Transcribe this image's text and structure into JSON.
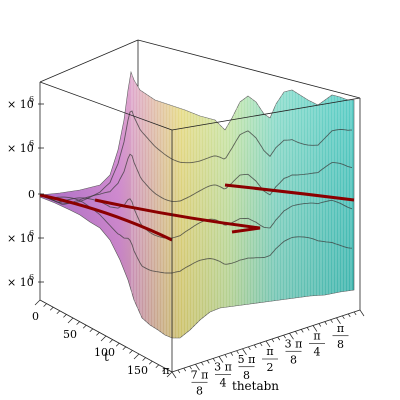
{
  "chart_data": {
    "type": "surface3d",
    "zlabel_suffix": "× 10",
    "zlabel_exp": "6",
    "z_ticks": [
      {
        "value": 2,
        "label": "× 10",
        "exp": "6"
      },
      {
        "value": 1,
        "label": "× 10",
        "exp": "6"
      },
      {
        "value": 0,
        "label": "0"
      },
      {
        "value": -1,
        "label": "× 10",
        "exp": "6"
      },
      {
        "value": -2,
        "label": "× 10",
        "exp": "6"
      }
    ],
    "t_axis": {
      "label": "t",
      "ticks": [
        {
          "value": 0,
          "label": "0"
        },
        {
          "value": 50,
          "label": "50"
        },
        {
          "value": 100,
          "label": "100"
        },
        {
          "value": 150,
          "label": "150"
        }
      ],
      "range": [
        0,
        200
      ]
    },
    "theta_axis": {
      "label": "thetabn",
      "range_text": "0 to π",
      "ticks": [
        {
          "value": 1.0,
          "num": "π",
          "den": ""
        },
        {
          "value": 0.875,
          "num": "7 π",
          "den": "8"
        },
        {
          "value": 0.75,
          "num": "3 π",
          "den": "4"
        },
        {
          "value": 0.625,
          "num": "5 π",
          "den": "8"
        },
        {
          "value": 0.5,
          "num": "π",
          "den": "2"
        },
        {
          "value": 0.375,
          "num": "3 π",
          "den": "8"
        },
        {
          "value": 0.25,
          "num": "π",
          "den": "4"
        },
        {
          "value": 0.125,
          "num": "π",
          "den": "8"
        }
      ]
    },
    "colors": {
      "surface_left": "#c77ad6",
      "surface_mid": "#e9e37a",
      "surface_right": "#4fd6c4",
      "red_line": "#8b0000",
      "contour": "#3a3a3a",
      "box": "#222222"
    }
  }
}
